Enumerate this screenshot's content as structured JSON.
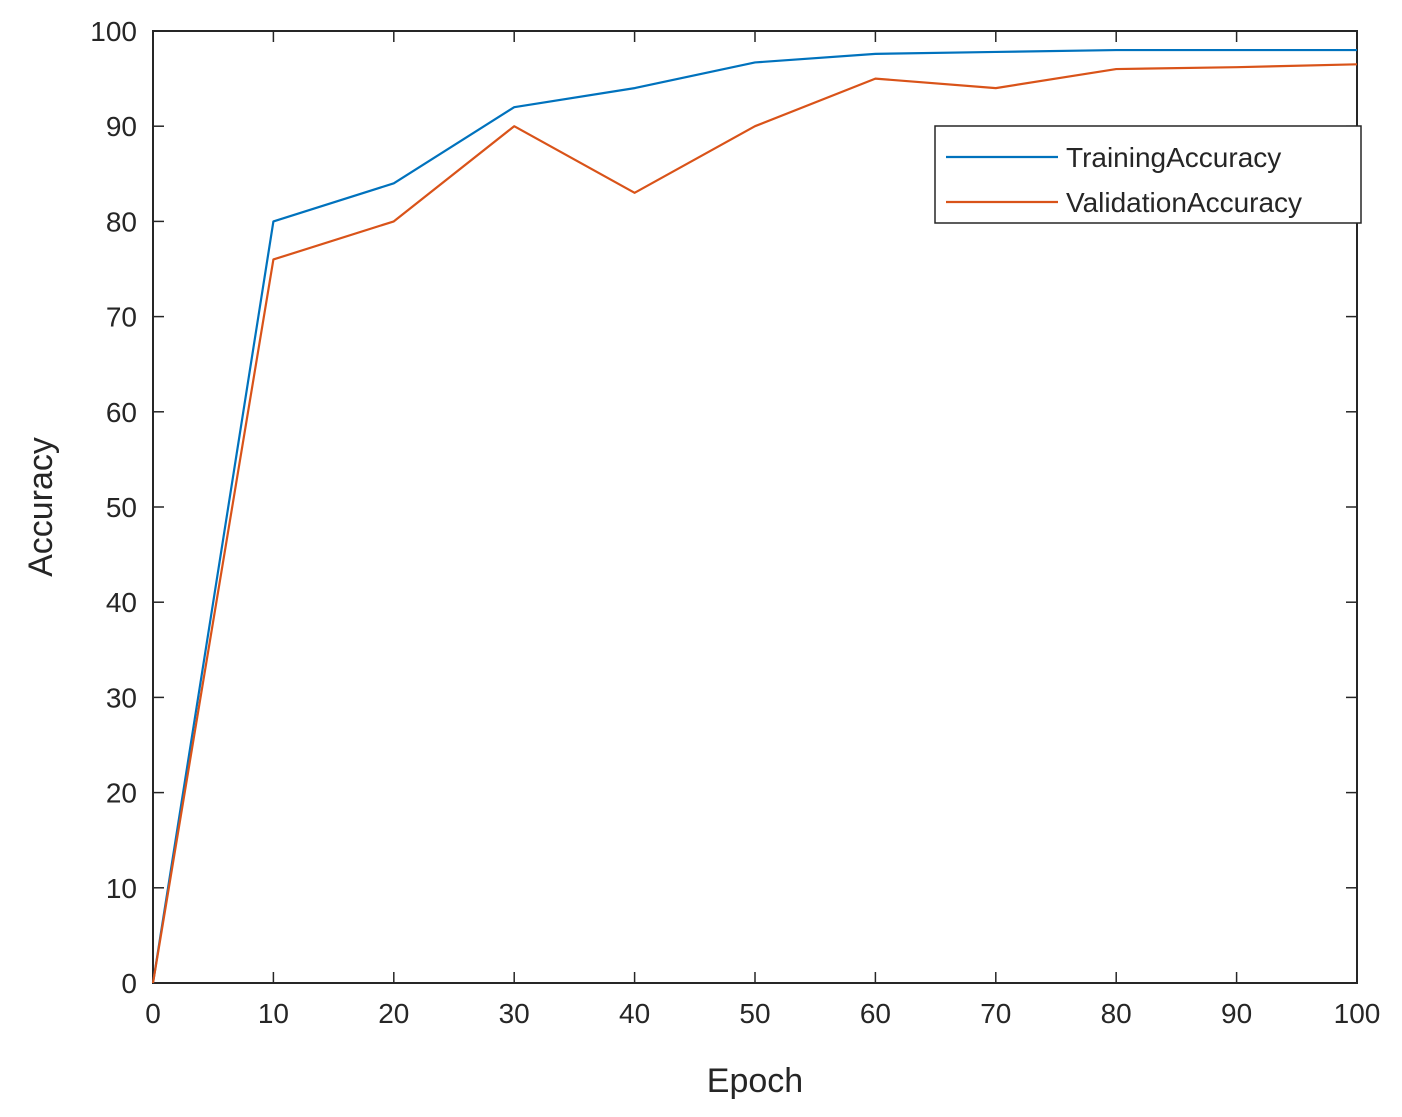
{
  "chart_data": {
    "type": "line",
    "xlabel": "Epoch",
    "ylabel": "Accuracy",
    "xlim": [
      0,
      100
    ],
    "ylim": [
      0,
      100
    ],
    "xticks": [
      0,
      10,
      20,
      30,
      40,
      50,
      60,
      70,
      80,
      90,
      100
    ],
    "yticks": [
      0,
      10,
      20,
      30,
      40,
      50,
      60,
      70,
      80,
      90,
      100
    ],
    "grid": false,
    "legend_position": "top-right",
    "x": [
      0,
      10,
      20,
      30,
      40,
      50,
      60,
      70,
      80,
      90,
      100
    ],
    "series": [
      {
        "name": "TrainingAccuracy",
        "color": "#0072BD",
        "values": [
          0,
          80,
          84,
          92,
          94,
          96.7,
          97.6,
          97.8,
          98,
          98,
          98
        ]
      },
      {
        "name": "ValidationAccuracy",
        "color": "#D95319",
        "values": [
          0,
          76,
          80,
          90,
          83,
          90,
          95,
          94,
          96,
          96.2,
          96.5
        ]
      }
    ]
  }
}
